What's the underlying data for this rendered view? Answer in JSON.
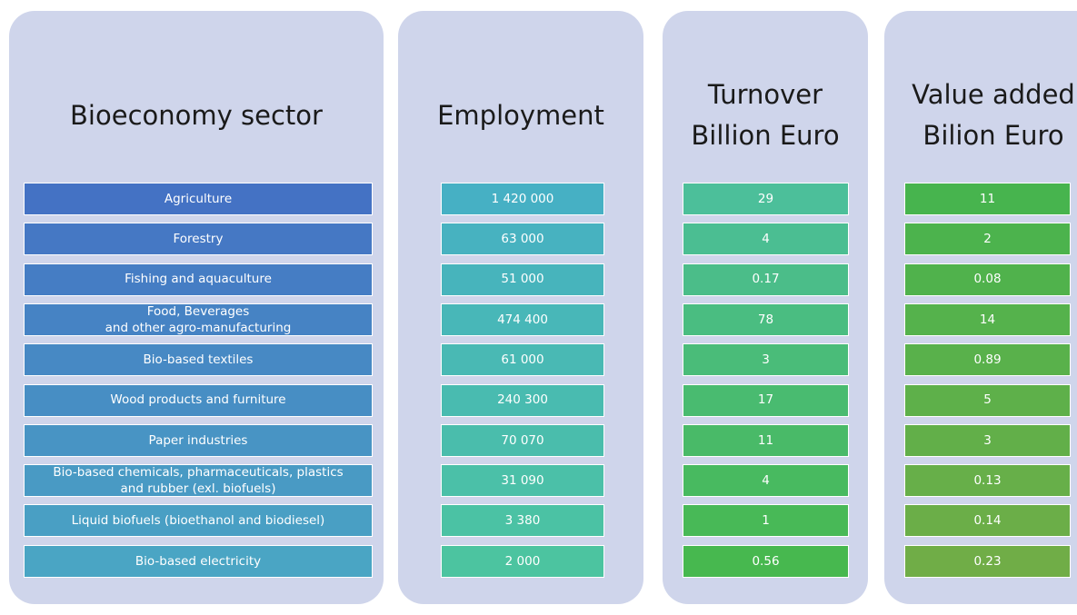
{
  "columns": [
    {
      "header": "Bioeconomy sector",
      "cells": [
        "Agriculture",
        "Forestry",
        "Fishing and aquaculture",
        "Food, Beverages\nand other agro-manufacturing",
        "Bio-based textiles",
        "Wood products and furniture",
        "Paper industries",
        "Bio-based chemicals, pharmaceuticals, plastics\nand rubber (exl. biofuels)",
        "Liquid biofuels (bioethanol and biodiesel)",
        "Bio-based electricity"
      ]
    },
    {
      "header": "Employment",
      "cells": [
        "1 420 000",
        "63 000",
        "51 000",
        "474 400",
        "61 000",
        "240 300",
        "70 070",
        "31 090",
        "3 380",
        "2 000"
      ]
    },
    {
      "header": "Turnover\nBillion Euro",
      "cells": [
        "29",
        "4",
        "0.17",
        "78",
        "3",
        "17",
        "11",
        "4",
        "1",
        "0.56"
      ]
    },
    {
      "header": "Value added\nBilion Euro",
      "cells": [
        "11",
        "2",
        "0.08",
        "14",
        "0.89",
        "5",
        "3",
        "0.13",
        "0.14",
        "0.23"
      ]
    }
  ]
}
